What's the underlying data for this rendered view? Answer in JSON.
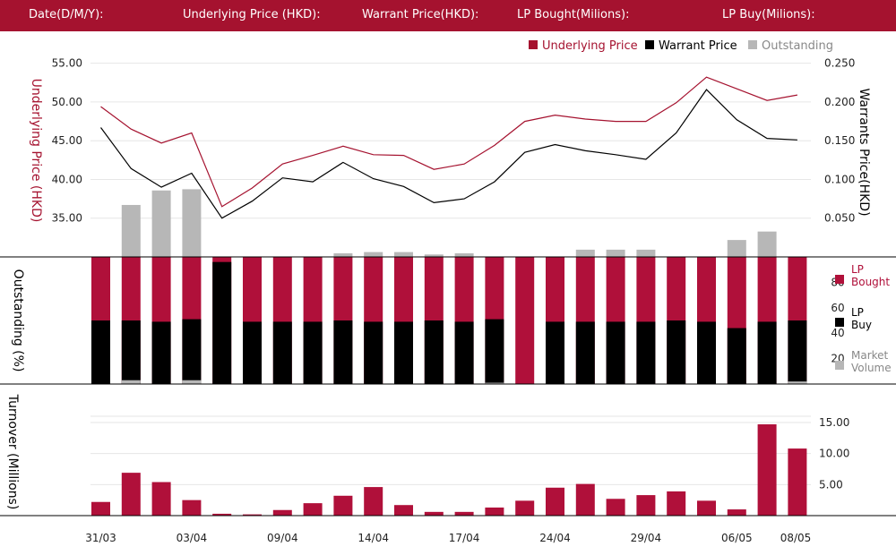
{
  "header": {
    "date_label": "Date(D/M/Y):",
    "underlying_label": "Underlying Price (HKD):",
    "warrant_label": "Warrant  Price(HKD):",
    "lp_bought_label": "LP Bought(Milions):",
    "lp_buy_label": "LP Buy(Milions):"
  },
  "colors": {
    "header_bg": "#a5122f",
    "underlying": "#a5122f",
    "warrant": "#000000",
    "outstanding": "#b7b7b7",
    "lp_bought": "#b0103a",
    "lp_buy": "#000000",
    "market_volume": "#b7b7b7",
    "turnover": "#b0103a"
  },
  "chart_data": {
    "type": "combo",
    "x_tick_labels": [
      "31/03",
      "03/04",
      "09/04",
      "14/04",
      "17/04",
      "24/04",
      "29/04",
      "06/05",
      "08/05"
    ],
    "price_panel": {
      "legend": [
        {
          "name": "Underlying Price",
          "color": "#a5122f"
        },
        {
          "name": "Warrant  Price",
          "color": "#000000"
        },
        {
          "name": "Outstanding",
          "color": "#b7b7b7"
        }
      ],
      "left_axis": {
        "label": "Underlying Price (HKD)",
        "ticks": [
          "35.00",
          "40.00",
          "45.00",
          "50.00",
          "55.00"
        ],
        "range": [
          30,
          56
        ]
      },
      "right_axis": {
        "label": "Warrants  Price(HKD)",
        "ticks": [
          "0.050",
          "0.100",
          "0.150",
          "0.200",
          "0.250"
        ],
        "range": [
          0,
          0.26
        ]
      },
      "underlying_price": [
        49.4,
        46.5,
        44.7,
        46.0,
        36.5,
        38.9,
        42.0,
        43.1,
        44.3,
        43.2,
        43.1,
        41.3,
        42.0,
        44.4,
        47.5,
        48.3,
        47.8,
        47.5,
        47.5,
        49.9,
        53.2,
        51.7,
        50.2,
        50.9
      ],
      "warrant_price": [
        0.167,
        0.114,
        0.09,
        0.108,
        0.05,
        0.072,
        0.102,
        0.097,
        0.122,
        0.101,
        0.091,
        0.07,
        0.075,
        0.097,
        0.135,
        0.145,
        0.137,
        0.132,
        0.126,
        0.16,
        0.216,
        0.177,
        0.153,
        0.151
      ],
      "outstanding_pct": [
        0,
        43,
        55,
        56,
        0,
        0,
        0,
        0,
        3,
        4,
        4,
        2,
        3,
        0,
        0,
        0,
        6,
        6,
        6,
        0,
        0,
        14,
        21,
        0
      ]
    },
    "lp_panel": {
      "axis": {
        "label": "Outstanding (%)",
        "ticks": [
          "20",
          "40",
          "60",
          "80"
        ],
        "range": [
          0,
          100
        ]
      },
      "legend": [
        {
          "name": "LP Bought",
          "color": "#b0103a"
        },
        {
          "name": "LP Buy",
          "color": "#000000"
        },
        {
          "name": "Market Volume",
          "color": "#b7b7b7"
        }
      ],
      "lp_buy_pct": [
        50,
        50,
        49,
        51,
        96,
        49,
        49,
        49,
        50,
        49,
        49,
        50,
        49,
        51,
        0,
        49,
        49,
        49,
        49,
        50,
        49,
        44,
        49,
        50
      ],
      "market_volume_pct": [
        0,
        3,
        0,
        3,
        0,
        0,
        0,
        0,
        0,
        0,
        0,
        0,
        0,
        1,
        0,
        0,
        0,
        0,
        0,
        0,
        0,
        0,
        0,
        2
      ]
    },
    "turnover_panel": {
      "axis": {
        "label": "Turnover (Millions)",
        "ticks": [
          "5.00",
          "10.00",
          "15.00"
        ],
        "range": [
          0,
          16
        ]
      },
      "values": [
        2.2,
        6.9,
        5.4,
        2.5,
        0.3,
        0.2,
        0.9,
        2.0,
        3.2,
        4.6,
        1.7,
        0.6,
        0.6,
        1.3,
        2.4,
        4.5,
        5.1,
        2.7,
        3.3,
        3.9,
        2.4,
        1.0,
        14.7,
        10.8
      ]
    }
  }
}
